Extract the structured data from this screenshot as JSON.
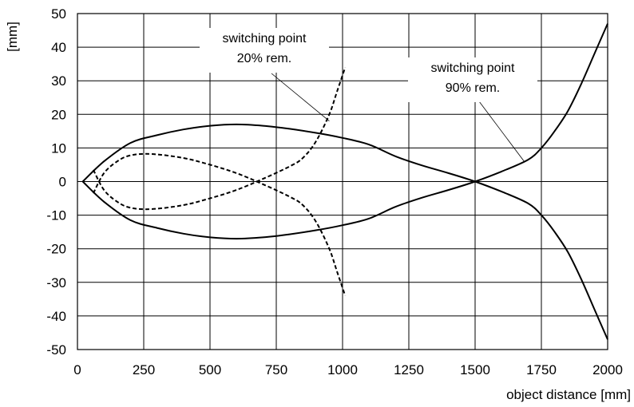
{
  "chart_data": {
    "type": "line",
    "title": "",
    "xlabel": "object distance [mm]",
    "ylabel": "[mm]",
    "xlim": [
      0,
      2000
    ],
    "ylim": [
      -50,
      50
    ],
    "x_ticks": [
      "0",
      "250",
      "500",
      "750",
      "1000",
      "1250",
      "1500",
      "1750",
      "2000"
    ],
    "y_ticks": [
      "50",
      "40",
      "30",
      "20",
      "10",
      "0",
      "-10",
      "-20",
      "-30",
      "-40",
      "-50"
    ],
    "grid": true,
    "series": [
      {
        "style": "solid",
        "color": "#000000",
        "x": [
          20,
          100,
          200,
          300,
          400,
          500,
          600,
          700,
          800,
          900,
          1000,
          1100,
          1200,
          1300,
          1400,
          1500,
          1600,
          1700,
          1750,
          1800,
          1850,
          1900,
          1950,
          2000
        ],
        "y": [
          0,
          6,
          11.5,
          13.8,
          15.5,
          16.6,
          17,
          16.6,
          15.7,
          14.5,
          13,
          11,
          7.5,
          4.8,
          2.5,
          0,
          -3,
          -6.5,
          -10,
          -15,
          -21,
          -29,
          -38,
          -47
        ]
      },
      {
        "style": "solid",
        "color": "#000000",
        "x": [
          20,
          100,
          200,
          300,
          400,
          500,
          600,
          700,
          800,
          900,
          1000,
          1100,
          1200,
          1300,
          1400,
          1500,
          1600,
          1700,
          1750,
          1800,
          1850,
          1900,
          1950,
          2000
        ],
        "y": [
          0,
          -6,
          -11.5,
          -13.8,
          -15.5,
          -16.6,
          -17,
          -16.6,
          -15.7,
          -14.5,
          -13,
          -11,
          -7.5,
          -4.8,
          -2.5,
          0,
          3,
          6.5,
          10,
          15,
          21,
          29,
          38,
          47
        ]
      },
      {
        "style": "dashed",
        "color": "#000000",
        "x": [
          60,
          100,
          150,
          200,
          280,
          400,
          500,
          600,
          700,
          800,
          850,
          900,
          950,
          980,
          1010
        ],
        "y": [
          3.5,
          -2.5,
          -6,
          -7.8,
          -8.2,
          -7,
          -5,
          -2.5,
          0.8,
          4.5,
          7,
          12,
          20,
          27,
          34
        ]
      },
      {
        "style": "dashed",
        "color": "#000000",
        "x": [
          60,
          100,
          150,
          200,
          280,
          400,
          500,
          600,
          700,
          800,
          850,
          900,
          950,
          980,
          1010
        ],
        "y": [
          -3.5,
          2.5,
          6,
          7.8,
          8.2,
          7,
          5,
          2.5,
          -0.8,
          -4.5,
          -7,
          -12,
          -20,
          -27,
          -34
        ]
      }
    ],
    "annotations": [
      {
        "line1": "switching point",
        "line2": "20% rem.",
        "target": [
          950,
          18
        ]
      },
      {
        "line1": "switching point",
        "line2": "90% rem.",
        "target": [
          1685,
          6
        ]
      }
    ]
  }
}
